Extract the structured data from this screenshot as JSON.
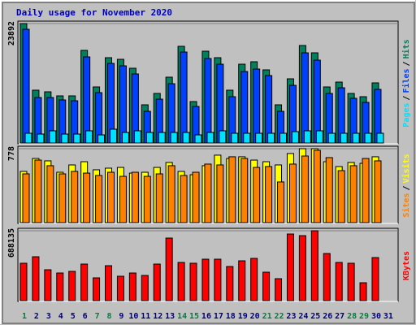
{
  "chart_data": [
    {
      "type": "bar",
      "title": "Daily usage for November 2020",
      "label_separator": "/",
      "ylim": [
        0,
        23892
      ],
      "yticks": [
        23892
      ],
      "series": [
        {
          "name": "Hits",
          "color": "#00805c",
          "values": [
            23892,
            10565,
            10240,
            9427,
            9427,
            18529,
            11215,
            17066,
            16741,
            14953,
            7639,
            9914,
            13165,
            19341,
            8289,
            18366,
            17066,
            10565,
            15766,
            16253,
            14628,
            7639,
            12840,
            19504,
            18041,
            11215,
            12190,
            9914,
            9264,
            12027,
            null
          ]
        },
        {
          "name": "Files",
          "color": "#0040ff",
          "values": [
            22750,
            9100,
            9100,
            8613,
            8450,
            17225,
            10075,
            15925,
            15438,
            13813,
            6338,
            8775,
            11863,
            18200,
            7313,
            16900,
            15763,
            9263,
            14300,
            14788,
            13488,
            6338,
            11538,
            18038,
            16575,
            9913,
            11050,
            8938,
            8125,
            10725,
            null
          ]
        },
        {
          "name": "Pages",
          "color": "#00e0ff",
          "values": [
            1950,
            1788,
            2438,
            1788,
            1788,
            2438,
            1625,
            2763,
            2113,
            2438,
            2113,
            2113,
            2113,
            2113,
            1625,
            2113,
            2438,
            1950,
            1950,
            1950,
            1950,
            1950,
            2275,
            2438,
            2438,
            1950,
            1950,
            1950,
            1950,
            1950,
            null
          ]
        }
      ]
    },
    {
      "type": "bar",
      "label_separator": "/",
      "ylim": [
        0,
        778
      ],
      "yticks": [
        778
      ],
      "series": [
        {
          "name": "Visits",
          "color": "#ffff00",
          "values": [
            539,
            675,
            650,
            530,
            607,
            641,
            556,
            573,
            581,
            521,
            530,
            581,
            633,
            539,
            504,
            599,
            710,
            675,
            693,
            658,
            641,
            607,
            727,
            778,
            778,
            641,
            590,
            633,
            624,
            693,
            null
          ]
        },
        {
          "name": "Sites",
          "color": "#ff8000",
          "values": [
            513,
            658,
            599,
            513,
            539,
            521,
            496,
            530,
            487,
            530,
            487,
            513,
            599,
            496,
            530,
            616,
            607,
            693,
            675,
            581,
            590,
            428,
            616,
            701,
            761,
            684,
            547,
            599,
            675,
            650,
            null
          ]
        }
      ]
    },
    {
      "type": "bar",
      "ylim": [
        0,
        688135
      ],
      "yticks": [
        688135
      ],
      "categories": [
        "1",
        "2",
        "3",
        "4",
        "5",
        "6",
        "7",
        "8",
        "9",
        "10",
        "11",
        "12",
        "13",
        "14",
        "15",
        "16",
        "17",
        "18",
        "19",
        "20",
        "21",
        "22",
        "23",
        "24",
        "25",
        "26",
        "27",
        "28",
        "29",
        "30",
        "31"
      ],
      "x_label_colors": [
        "#008040",
        "#000080",
        "#000080",
        "#000080",
        "#000080",
        "#000080",
        "#008040",
        "#008040",
        "#000080",
        "#000080",
        "#000080",
        "#000080",
        "#000080",
        "#008040",
        "#008040",
        "#000080",
        "#000080",
        "#000080",
        "#000080",
        "#000080",
        "#008040",
        "#008040",
        "#000080",
        "#000080",
        "#000080",
        "#000080",
        "#000080",
        "#008040",
        "#008040",
        "#000080",
        "#000080"
      ],
      "series": [
        {
          "name": "KBytes",
          "color": "#ff0000",
          "values": [
            368000,
            432100,
            304000,
            272000,
            288000,
            360000,
            224000,
            344000,
            240000,
            272000,
            248000,
            360000,
            616000,
            376000,
            368000,
            408000,
            408000,
            336000,
            392000,
            416000,
            280000,
            216000,
            656000,
            640000,
            688135,
            464000,
            376000,
            368000,
            176000,
            424000,
            null
          ]
        }
      ]
    }
  ]
}
